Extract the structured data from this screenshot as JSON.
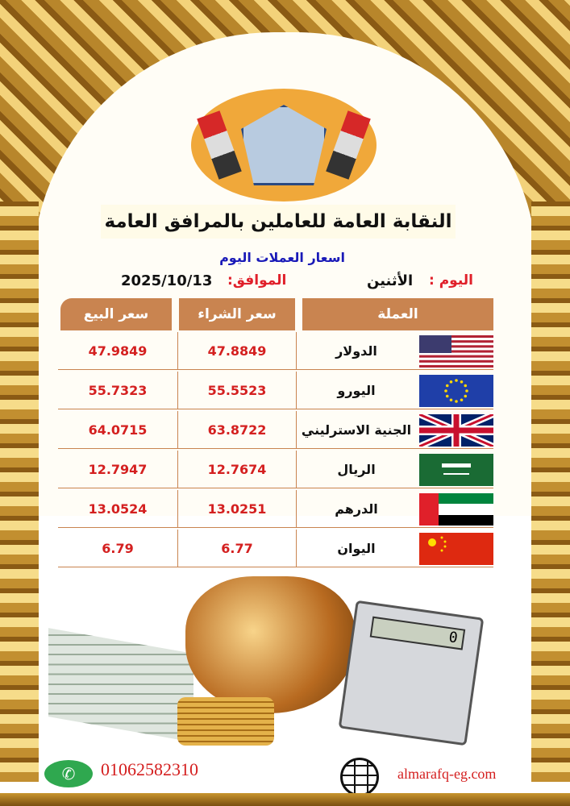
{
  "header": {
    "org_name": "النقابة العامة للعاملين بالمرافق العامة",
    "subtitle": "اسعار العملات اليوم",
    "day_label": "اليوم :",
    "day_value": "الأثنين",
    "date_label": "الموافق:",
    "date_value": "2025/10/13"
  },
  "table": {
    "columns": [
      "سعر البيع",
      "سعر الشراء",
      "العملة"
    ],
    "rows": [
      {
        "currency": "الدولار",
        "flag": "usa-flag",
        "buy": "47.8849",
        "sell": "47.9849"
      },
      {
        "currency": "اليورو",
        "flag": "eu-flag",
        "buy": "55.5523",
        "sell": "55.7323"
      },
      {
        "currency": "الجنية الاسترليني",
        "flag": "uk-flag",
        "buy": "63.8722",
        "sell": "64.0715"
      },
      {
        "currency": "الريال",
        "flag": "saudi-flag",
        "buy": "12.7674",
        "sell": "12.7947"
      },
      {
        "currency": "الدرهم",
        "flag": "uae-flag",
        "buy": "13.0251",
        "sell": "13.0524"
      },
      {
        "currency": "اليوان",
        "flag": "china-flag",
        "buy": "6.77",
        "sell": "6.79"
      }
    ]
  },
  "illustration": {
    "calculator_display": "0"
  },
  "footer": {
    "phone": "01062582310",
    "website": "almarafq-eg.com"
  },
  "colors": {
    "header_bg": "#c98450",
    "price": "#d42020",
    "subtitle": "#1a1ab8",
    "label_red": "#e0202a"
  }
}
